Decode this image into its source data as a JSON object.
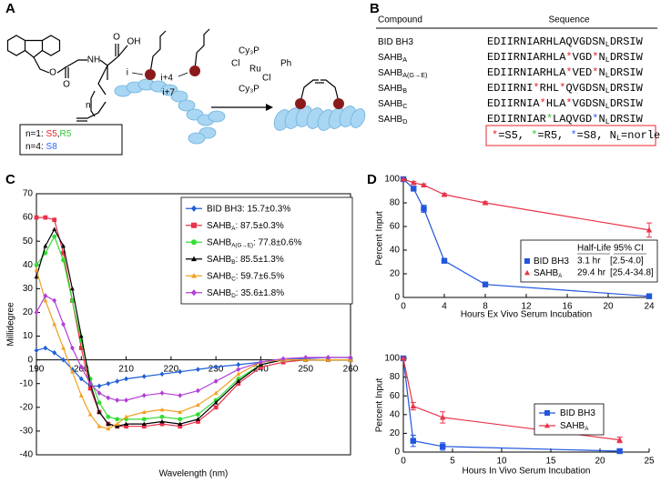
{
  "panel_a": {
    "letter": "A",
    "atoms": [
      "O",
      "O",
      "NH",
      "OH",
      "O"
    ],
    "repeat": "n",
    "residues": [
      "i",
      "i+4",
      "i+7"
    ],
    "catalyst": [
      "Cy₃P",
      "Cl",
      "Ru",
      "Ph",
      "Cl",
      "Cy₃P"
    ],
    "key": [
      [
        {
          "text": "n=1: "
        },
        {
          "text": "S5",
          "color": "#e8262b"
        },
        {
          "text": ","
        },
        {
          "text": "R5",
          "color": "#2ec82e"
        }
      ],
      [
        {
          "text": "n=4: "
        },
        {
          "text": "S8",
          "color": "#3366ff"
        }
      ]
    ]
  },
  "panel_b": {
    "letter": "B",
    "header": [
      "Compound",
      "Sequence"
    ],
    "rows": [
      {
        "compound": [
          {
            "text": "BID BH3"
          }
        ],
        "sequence": [
          {
            "text": "EDIIRNIARHLAQVGDSN"
          },
          {
            "text": "L",
            "sub": true
          },
          {
            "text": "DRSIW"
          }
        ]
      },
      {
        "compound": [
          {
            "text": "SAHB"
          },
          {
            "text": "A",
            "sub": true
          }
        ],
        "sequence": [
          {
            "text": "EDIIRNIARHLA"
          },
          {
            "text": "*",
            "color": "#e8262b"
          },
          {
            "text": "VGD"
          },
          {
            "text": "*",
            "color": "#e8262b"
          },
          {
            "text": "N"
          },
          {
            "text": "L",
            "sub": true
          },
          {
            "text": "DRSIW"
          }
        ]
      },
      {
        "compound": [
          {
            "text": "SAHB"
          },
          {
            "text": "A(G→E)",
            "sub": true
          }
        ],
        "sequence": [
          {
            "text": "EDIIRNIARHLA"
          },
          {
            "text": "*",
            "color": "#e8262b"
          },
          {
            "text": "VED"
          },
          {
            "text": "*",
            "color": "#e8262b"
          },
          {
            "text": "N"
          },
          {
            "text": "L",
            "sub": true
          },
          {
            "text": "DRSIW"
          }
        ]
      },
      {
        "compound": [
          {
            "text": "SAHB"
          },
          {
            "text": "B",
            "sub": true
          }
        ],
        "sequence": [
          {
            "text": "EDIIRNI"
          },
          {
            "text": "*",
            "color": "#e8262b"
          },
          {
            "text": "RHL"
          },
          {
            "text": "*",
            "color": "#e8262b"
          },
          {
            "text": "QVGDSN"
          },
          {
            "text": "L",
            "sub": true
          },
          {
            "text": "DRSIW"
          }
        ]
      },
      {
        "compound": [
          {
            "text": "SAHB"
          },
          {
            "text": "C",
            "sub": true
          }
        ],
        "sequence": [
          {
            "text": "EDIIRNIA"
          },
          {
            "text": "*",
            "color": "#e8262b"
          },
          {
            "text": "HLA"
          },
          {
            "text": "*",
            "color": "#e8262b"
          },
          {
            "text": "VGDSN"
          },
          {
            "text": "L",
            "sub": true
          },
          {
            "text": "DRSIW"
          }
        ]
      },
      {
        "compound": [
          {
            "text": "SAHB"
          },
          {
            "text": "D",
            "sub": true
          }
        ],
        "sequence": [
          {
            "text": "EDIIRNIAR"
          },
          {
            "text": "*",
            "color": "#2ec82e"
          },
          {
            "text": "LAQVGD"
          },
          {
            "text": "*",
            "color": "#3366ff"
          },
          {
            "text": "N"
          },
          {
            "text": "L",
            "sub": true
          },
          {
            "text": "DRSIW"
          }
        ]
      }
    ],
    "key": [
      {
        "text": "*",
        "color": "#e8262b"
      },
      {
        "text": "=S5, "
      },
      {
        "text": "*",
        "color": "#2ec82e"
      },
      {
        "text": "=R5, "
      },
      {
        "text": "*",
        "color": "#3366ff"
      },
      {
        "text": "=S8, "
      },
      {
        "text": "N"
      },
      {
        "text": "L",
        "sub": true
      },
      {
        "text": "=norleu"
      }
    ]
  },
  "chart_data": [
    {
      "type": "line",
      "panel": "C",
      "xlabel": "Wavelength (nm)",
      "ylabel": "Millidegree",
      "x": [
        190,
        192,
        194,
        196,
        198,
        200,
        202,
        204,
        206,
        208,
        210,
        214,
        218,
        222,
        226,
        230,
        235,
        240,
        245,
        250,
        255,
        260
      ],
      "xlim": [
        190,
        260
      ],
      "xticks": [
        190,
        200,
        210,
        220,
        230,
        240,
        250,
        260
      ],
      "ylim": [
        -40,
        70
      ],
      "yticks": [
        -40,
        -30,
        -20,
        -10,
        0,
        10,
        20,
        30,
        40,
        50,
        60,
        70
      ],
      "frame": true,
      "zero_line": true,
      "legend": "upper right",
      "series": [
        {
          "name": "BID BH3",
          "stat": ": 15.7±0.3%",
          "color": "#1f5fd6",
          "marker": "diamond",
          "values": [
            4,
            5,
            3,
            0,
            -4,
            -8,
            -11,
            -11,
            -10,
            -9,
            -8,
            -7,
            -6,
            -5,
            -4,
            -3,
            -2,
            -1,
            0,
            0.5,
            1,
            1
          ]
        },
        {
          "name": "SAHB",
          "name_sub": "A",
          "stat": ": 87.5±0.3%",
          "color": "#e8334a",
          "marker": "square",
          "values": [
            60,
            60,
            59,
            45,
            25,
            5,
            -12,
            -22,
            -27,
            -28,
            -28,
            -28,
            -27,
            -28,
            -26,
            -20,
            -10,
            -3,
            -1,
            0,
            0,
            0
          ]
        },
        {
          "name": "SAHB",
          "name_sub": "A(G→E)",
          "stat": ": 77.8±0.6%",
          "color": "#33dd33",
          "marker": "circle",
          "values": [
            40,
            45,
            52,
            42,
            25,
            8,
            -8,
            -18,
            -24,
            -25,
            -25,
            -25,
            -24,
            -25,
            -23,
            -17,
            -8,
            -2,
            0,
            0,
            0,
            0
          ]
        },
        {
          "name": "SAHB",
          "name_sub": "B",
          "stat": ": 85.5±1.3%",
          "color": "#000000",
          "marker": "triangle",
          "values": [
            35,
            48,
            55,
            48,
            30,
            10,
            -10,
            -22,
            -27,
            -28,
            -27,
            -27,
            -26,
            -27,
            -25,
            -18,
            -9,
            -2,
            0,
            0,
            0,
            0
          ]
        },
        {
          "name": "SAHB",
          "name_sub": "C",
          "stat": ": 59.7±6.5%",
          "color": "#f0a020",
          "marker": "triangle",
          "values": [
            38,
            25,
            15,
            5,
            -5,
            -15,
            -23,
            -28,
            -29,
            -27,
            -24,
            -22,
            -21,
            -22,
            -19,
            -14,
            -6,
            -1,
            0,
            0,
            0,
            0
          ]
        },
        {
          "name": "SAHB",
          "name_sub": "D",
          "stat": ": 35.6±1.8%",
          "color": "#b23fd6",
          "marker": "diamond",
          "values": [
            20,
            27,
            25,
            15,
            5,
            -3,
            -10,
            -14,
            -16,
            -17,
            -17,
            -15,
            -14,
            -15,
            -13,
            -9,
            -4,
            -1,
            0.5,
            1,
            1,
            1
          ]
        }
      ]
    },
    {
      "type": "line",
      "panel": "D",
      "xlabel": "Hours Ex Vivo Serum Incubation",
      "ylabel": "Percent Input",
      "xlim": [
        0,
        24
      ],
      "xticks": [
        0,
        4,
        8,
        12,
        16,
        20,
        24
      ],
      "ylim": [
        0,
        100
      ],
      "yticks": [
        0,
        20,
        40,
        60,
        80,
        100
      ],
      "legend": "lower right",
      "table": {
        "columns": [
          "Half-Life",
          "95% CI"
        ],
        "rows": [
          [
            "3.1 hr",
            "[2.5-4.0]"
          ],
          [
            "29.4 hr",
            "[25.4-34.8]"
          ]
        ]
      },
      "series": [
        {
          "name": "BID BH3",
          "color": "#2255dd",
          "marker": "square",
          "x": [
            0,
            1,
            2,
            4,
            8,
            24
          ],
          "values": [
            100,
            92,
            75,
            31,
            11,
            1
          ],
          "errors": [
            0,
            1,
            3,
            1,
            1,
            1
          ]
        },
        {
          "name": "SAHB",
          "name_sub": "A",
          "color": "#e8334a",
          "marker": "triangle",
          "x": [
            0,
            1,
            2,
            4,
            8,
            24
          ],
          "values": [
            100,
            97,
            95,
            87,
            80,
            57
          ],
          "errors": [
            0,
            1,
            1,
            1,
            1,
            6
          ]
        }
      ]
    },
    {
      "type": "line",
      "xlabel": "Hours In Vivo Serum Incubation",
      "ylabel": "Percent Input",
      "xlim": [
        0,
        25
      ],
      "xticks": [
        0,
        5,
        10,
        15,
        20,
        25
      ],
      "ylim": [
        0,
        100
      ],
      "yticks": [
        0,
        20,
        40,
        60,
        80,
        100
      ],
      "legend": "lower right",
      "series": [
        {
          "name": "BID BH3",
          "color": "#2255dd",
          "marker": "square",
          "x": [
            0,
            1,
            4,
            22
          ],
          "values": [
            100,
            12,
            6,
            1
          ],
          "errors": [
            0,
            6,
            4,
            1
          ]
        },
        {
          "name": "SAHB",
          "name_sub": "A",
          "color": "#e8334a",
          "marker": "triangle",
          "x": [
            0,
            1,
            4,
            22
          ],
          "values": [
            100,
            49,
            37,
            13
          ],
          "errors": [
            0,
            4,
            6,
            3
          ]
        }
      ]
    }
  ]
}
